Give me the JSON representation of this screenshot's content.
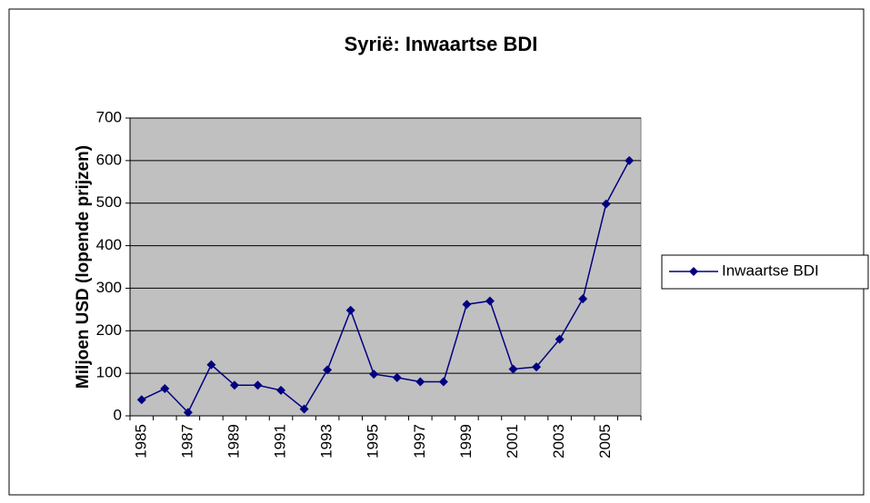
{
  "chart_data": {
    "type": "line",
    "title": "Syrië: Inwaartse BDI",
    "ylabel": "Miljoen USD (lopende prijzen)",
    "categories": [
      "1985",
      null,
      "1987",
      null,
      "1989",
      null,
      "1991",
      null,
      "1993",
      null,
      "1995",
      null,
      "1997",
      null,
      "1999",
      null,
      "2001",
      null,
      "2003",
      null,
      "2005",
      null
    ],
    "series": [
      {
        "name": "Inwaartse BDI",
        "color": "#000080",
        "values": [
          38,
          64,
          8,
          120,
          72,
          72,
          60,
          16,
          108,
          248,
          98,
          90,
          80,
          80,
          262,
          270,
          110,
          115,
          180,
          275,
          498,
          600
        ]
      }
    ],
    "ylim": [
      0,
      700
    ],
    "yticks": [
      0,
      100,
      200,
      300,
      400,
      500,
      600,
      700
    ],
    "grid": true,
    "legend": "right"
  }
}
